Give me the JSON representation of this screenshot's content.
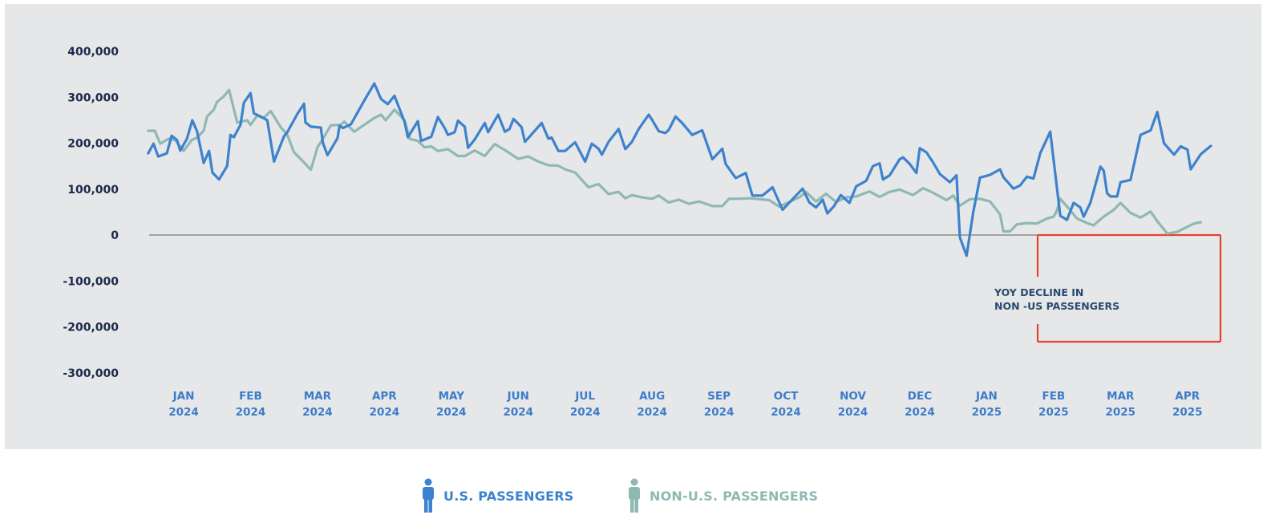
{
  "chart_data": {
    "type": "line",
    "title": "",
    "xlabel": "",
    "ylabel": "",
    "ylim": [
      -300000,
      400000
    ],
    "yticks": [
      400000,
      300000,
      200000,
      100000,
      0,
      -100000,
      -200000,
      -300000
    ],
    "ytick_labels": [
      "400,000",
      "300,000",
      "200,000",
      "100,000",
      "0",
      "-100,000",
      "-200,000",
      "-300,000"
    ],
    "xtick_labels": [
      [
        "JAN",
        "2024"
      ],
      [
        "FEB",
        "2024"
      ],
      [
        "MAR",
        "2024"
      ],
      [
        "APR",
        "2024"
      ],
      [
        "MAY",
        "2024"
      ],
      [
        "JUN",
        "2024"
      ],
      [
        "JUL",
        "2024"
      ],
      [
        "AUG",
        "2024"
      ],
      [
        "SEP",
        "2024"
      ],
      [
        "OCT",
        "2024"
      ],
      [
        "NOV",
        "2024"
      ],
      [
        "DEC",
        "2024"
      ],
      [
        "JAN",
        "2025"
      ],
      [
        "FEB",
        "2025"
      ],
      [
        "MAR",
        "2025"
      ],
      [
        "APR",
        "2025"
      ]
    ],
    "x_unit": "months since Jan 2024 (0 = Jan 2024)",
    "x_range": [
      -0.53,
      15.35
    ],
    "zero_line": true,
    "grid": false,
    "legend_position": "bottom-center",
    "series": [
      {
        "name": "U.S. PASSENGERS",
        "color": "#3d82cc",
        "points": [
          [
            -0.53,
            178000
          ],
          [
            -0.45,
            199000
          ],
          [
            -0.38,
            171000
          ],
          [
            -0.25,
            178000
          ],
          [
            -0.18,
            216000
          ],
          [
            -0.1,
            207000
          ],
          [
            -0.05,
            184000
          ],
          [
            0.05,
            210000
          ],
          [
            0.13,
            250000
          ],
          [
            0.2,
            226000
          ],
          [
            0.3,
            157000
          ],
          [
            0.38,
            183000
          ],
          [
            0.43,
            136000
          ],
          [
            0.53,
            121000
          ],
          [
            0.65,
            150000
          ],
          [
            0.7,
            218000
          ],
          [
            0.75,
            213000
          ],
          [
            0.85,
            240000
          ],
          [
            0.9,
            288000
          ],
          [
            1.0,
            309000
          ],
          [
            1.05,
            265000
          ],
          [
            1.15,
            258000
          ],
          [
            1.25,
            250000
          ],
          [
            1.35,
            160000
          ],
          [
            1.5,
            215000
          ],
          [
            1.55,
            224000
          ],
          [
            1.7,
            264000
          ],
          [
            1.8,
            286000
          ],
          [
            1.82,
            245000
          ],
          [
            1.9,
            236000
          ],
          [
            2.05,
            234000
          ],
          [
            2.08,
            201000
          ],
          [
            2.15,
            174000
          ],
          [
            2.3,
            211000
          ],
          [
            2.33,
            238000
          ],
          [
            2.38,
            233000
          ],
          [
            2.5,
            241000
          ],
          [
            2.7,
            293000
          ],
          [
            2.85,
            330000
          ],
          [
            2.95,
            296000
          ],
          [
            3.05,
            285000
          ],
          [
            3.15,
            303000
          ],
          [
            3.3,
            247000
          ],
          [
            3.35,
            213000
          ],
          [
            3.5,
            248000
          ],
          [
            3.55,
            205000
          ],
          [
            3.7,
            214000
          ],
          [
            3.8,
            257000
          ],
          [
            3.9,
            233000
          ],
          [
            3.95,
            218000
          ],
          [
            4.05,
            224000
          ],
          [
            4.1,
            249000
          ],
          [
            4.2,
            236000
          ],
          [
            4.25,
            190000
          ],
          [
            4.35,
            208000
          ],
          [
            4.5,
            244000
          ],
          [
            4.55,
            224000
          ],
          [
            4.7,
            262000
          ],
          [
            4.8,
            225000
          ],
          [
            4.87,
            231000
          ],
          [
            4.93,
            253000
          ],
          [
            5.05,
            235000
          ],
          [
            5.1,
            203000
          ],
          [
            5.2,
            219000
          ],
          [
            5.35,
            244000
          ],
          [
            5.45,
            210000
          ],
          [
            5.5,
            212000
          ],
          [
            5.6,
            183000
          ],
          [
            5.7,
            183000
          ],
          [
            5.85,
            202000
          ],
          [
            5.95,
            174000
          ],
          [
            6.0,
            160000
          ],
          [
            6.1,
            199000
          ],
          [
            6.2,
            188000
          ],
          [
            6.25,
            175000
          ],
          [
            6.35,
            203000
          ],
          [
            6.5,
            231000
          ],
          [
            6.6,
            187000
          ],
          [
            6.7,
            203000
          ],
          [
            6.8,
            231000
          ],
          [
            6.95,
            262000
          ],
          [
            7.0,
            251000
          ],
          [
            7.1,
            226000
          ],
          [
            7.2,
            222000
          ],
          [
            7.25,
            229000
          ],
          [
            7.35,
            258000
          ],
          [
            7.45,
            244000
          ],
          [
            7.6,
            218000
          ],
          [
            7.75,
            228000
          ],
          [
            7.9,
            165000
          ],
          [
            8.05,
            188000
          ],
          [
            8.1,
            155000
          ],
          [
            8.25,
            124000
          ],
          [
            8.4,
            135000
          ],
          [
            8.5,
            86000
          ],
          [
            8.65,
            86000
          ],
          [
            8.8,
            104000
          ],
          [
            8.95,
            55000
          ],
          [
            9.1,
            78000
          ],
          [
            9.25,
            101000
          ],
          [
            9.35,
            71000
          ],
          [
            9.45,
            60000
          ],
          [
            9.55,
            77000
          ],
          [
            9.62,
            47000
          ],
          [
            9.72,
            63000
          ],
          [
            9.82,
            87000
          ],
          [
            9.95,
            70000
          ],
          [
            10.05,
            106000
          ],
          [
            10.2,
            118000
          ],
          [
            10.3,
            150000
          ],
          [
            10.4,
            156000
          ],
          [
            10.45,
            121000
          ],
          [
            10.55,
            130000
          ],
          [
            10.7,
            165000
          ],
          [
            10.75,
            169000
          ],
          [
            10.85,
            155000
          ],
          [
            10.95,
            135000
          ],
          [
            11.0,
            189000
          ],
          [
            11.1,
            180000
          ],
          [
            11.2,
            158000
          ],
          [
            11.3,
            133000
          ],
          [
            11.45,
            115000
          ],
          [
            11.55,
            130000
          ],
          [
            11.6,
            -5000
          ],
          [
            11.7,
            -45000
          ],
          [
            11.8,
            50000
          ],
          [
            11.9,
            125000
          ],
          [
            12.05,
            131000
          ],
          [
            12.2,
            143000
          ],
          [
            12.25,
            126000
          ],
          [
            12.4,
            101000
          ],
          [
            12.5,
            108000
          ],
          [
            12.6,
            127000
          ],
          [
            12.7,
            123000
          ],
          [
            12.8,
            178000
          ],
          [
            12.95,
            225000
          ],
          [
            13.1,
            42000
          ],
          [
            13.2,
            33000
          ],
          [
            13.3,
            70000
          ],
          [
            13.4,
            60000
          ],
          [
            13.45,
            40000
          ],
          [
            13.55,
            70000
          ],
          [
            13.7,
            149000
          ],
          [
            13.75,
            140000
          ],
          [
            13.8,
            91000
          ],
          [
            13.85,
            84000
          ],
          [
            13.95,
            84000
          ],
          [
            14.0,
            115000
          ],
          [
            14.15,
            120000
          ],
          [
            14.3,
            218000
          ],
          [
            14.45,
            228000
          ],
          [
            14.55,
            268000
          ],
          [
            14.65,
            200000
          ],
          [
            14.8,
            175000
          ],
          [
            14.9,
            193000
          ],
          [
            15.0,
            186000
          ],
          [
            15.05,
            143000
          ],
          [
            15.2,
            176000
          ],
          [
            15.35,
            194000
          ]
        ]
      },
      {
        "name": "NON-U.S. PASSENGERS",
        "color": "#8fb8b4",
        "points": [
          [
            -0.53,
            227000
          ],
          [
            -0.43,
            227000
          ],
          [
            -0.35,
            199000
          ],
          [
            -0.22,
            210000
          ],
          [
            -0.12,
            206000
          ],
          [
            0.0,
            183000
          ],
          [
            0.12,
            207000
          ],
          [
            0.2,
            212000
          ],
          [
            0.3,
            227000
          ],
          [
            0.35,
            258000
          ],
          [
            0.45,
            273000
          ],
          [
            0.5,
            290000
          ],
          [
            0.6,
            302000
          ],
          [
            0.68,
            316000
          ],
          [
            0.8,
            245000
          ],
          [
            0.95,
            250000
          ],
          [
            1.0,
            240000
          ],
          [
            1.1,
            260000
          ],
          [
            1.2,
            255000
          ],
          [
            1.3,
            270000
          ],
          [
            1.45,
            235000
          ],
          [
            1.55,
            218000
          ],
          [
            1.65,
            180000
          ],
          [
            1.8,
            158000
          ],
          [
            1.9,
            142000
          ],
          [
            2.0,
            191000
          ],
          [
            2.1,
            214000
          ],
          [
            2.2,
            239000
          ],
          [
            2.35,
            240000
          ],
          [
            2.4,
            247000
          ],
          [
            2.55,
            225000
          ],
          [
            2.7,
            240000
          ],
          [
            2.85,
            255000
          ],
          [
            2.95,
            262000
          ],
          [
            3.02,
            250000
          ],
          [
            3.15,
            273000
          ],
          [
            3.3,
            250000
          ],
          [
            3.38,
            209000
          ],
          [
            3.5,
            205000
          ],
          [
            3.6,
            191000
          ],
          [
            3.7,
            193000
          ],
          [
            3.8,
            183000
          ],
          [
            3.95,
            187000
          ],
          [
            4.1,
            172000
          ],
          [
            4.2,
            172000
          ],
          [
            4.35,
            184000
          ],
          [
            4.5,
            172000
          ],
          [
            4.65,
            198000
          ],
          [
            4.8,
            185000
          ],
          [
            5.0,
            166000
          ],
          [
            5.15,
            171000
          ],
          [
            5.3,
            160000
          ],
          [
            5.45,
            152000
          ],
          [
            5.6,
            151000
          ],
          [
            5.7,
            143000
          ],
          [
            5.85,
            136000
          ],
          [
            6.05,
            104000
          ],
          [
            6.2,
            111000
          ],
          [
            6.35,
            89000
          ],
          [
            6.5,
            94000
          ],
          [
            6.6,
            80000
          ],
          [
            6.7,
            87000
          ],
          [
            6.85,
            82000
          ],
          [
            7.0,
            79000
          ],
          [
            7.1,
            86000
          ],
          [
            7.25,
            71000
          ],
          [
            7.4,
            77000
          ],
          [
            7.55,
            68000
          ],
          [
            7.7,
            73000
          ],
          [
            7.9,
            63000
          ],
          [
            8.05,
            63000
          ],
          [
            8.15,
            79000
          ],
          [
            8.3,
            79000
          ],
          [
            8.45,
            80000
          ],
          [
            8.6,
            78000
          ],
          [
            8.75,
            76000
          ],
          [
            8.9,
            62000
          ],
          [
            9.05,
            72000
          ],
          [
            9.2,
            82000
          ],
          [
            9.3,
            94000
          ],
          [
            9.45,
            73000
          ],
          [
            9.6,
            90000
          ],
          [
            9.75,
            72000
          ],
          [
            9.9,
            82000
          ],
          [
            10.05,
            84000
          ],
          [
            10.25,
            95000
          ],
          [
            10.4,
            83000
          ],
          [
            10.55,
            94000
          ],
          [
            10.7,
            99000
          ],
          [
            10.9,
            87000
          ],
          [
            11.05,
            102000
          ],
          [
            11.2,
            92000
          ],
          [
            11.4,
            76000
          ],
          [
            11.5,
            86000
          ],
          [
            11.6,
            64000
          ],
          [
            11.75,
            78000
          ],
          [
            11.9,
            79000
          ],
          [
            12.05,
            73000
          ],
          [
            12.2,
            45000
          ],
          [
            12.25,
            8000
          ],
          [
            12.35,
            8000
          ],
          [
            12.45,
            23000
          ],
          [
            12.6,
            26000
          ],
          [
            12.75,
            25000
          ],
          [
            12.9,
            36000
          ],
          [
            13.0,
            40000
          ],
          [
            13.05,
            53000
          ],
          [
            13.1,
            79000
          ],
          [
            13.25,
            54000
          ],
          [
            13.35,
            36000
          ],
          [
            13.5,
            26000
          ],
          [
            13.6,
            21000
          ],
          [
            13.65,
            28000
          ],
          [
            13.75,
            40000
          ],
          [
            13.9,
            55000
          ],
          [
            14.0,
            70000
          ],
          [
            14.15,
            48000
          ],
          [
            14.3,
            38000
          ],
          [
            14.45,
            51000
          ],
          [
            14.55,
            30000
          ],
          [
            14.7,
            3000
          ],
          [
            14.85,
            7000
          ],
          [
            15.0,
            18000
          ],
          [
            15.1,
            25000
          ],
          [
            15.2,
            28000
          ]
        ]
      }
    ],
    "annotation": {
      "text_lines": [
        "YOY DECLINE IN",
        "NON -US PASSENGERS"
      ],
      "box_color": "#e2442a"
    }
  },
  "legend": {
    "items": [
      {
        "label": "U.S. PASSENGERS",
        "icon": "person-icon",
        "color": "#3d82cc"
      },
      {
        "label": "NON-U.S. PASSENGERS",
        "icon": "person-icon",
        "color": "#8fb8b4"
      }
    ]
  }
}
